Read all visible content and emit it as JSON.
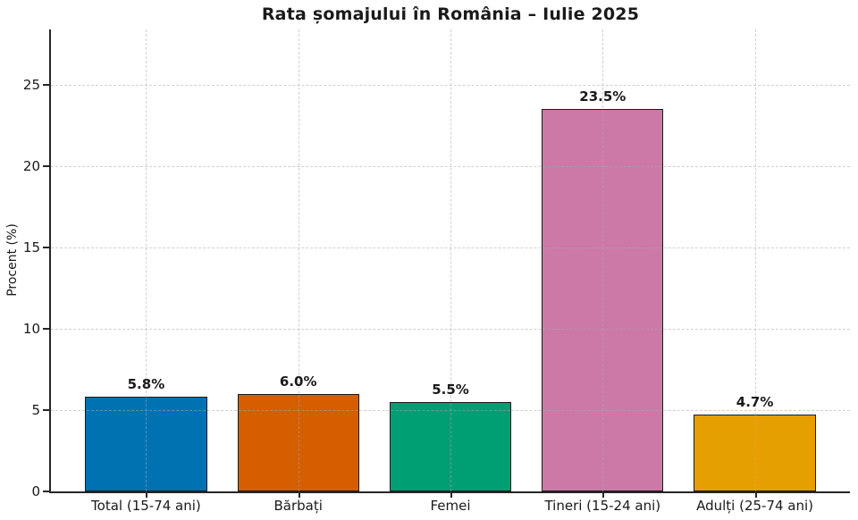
{
  "title": "Rata șomajului în România – Iulie 2025",
  "chart_data": {
    "type": "bar",
    "title": "Rata șomajului în România – Iulie 2025",
    "xlabel": "",
    "ylabel": "Procent (%)",
    "categories": [
      "Total (15-74 ani)",
      "Bărbați",
      "Femei",
      "Tineri (15-24 ani)",
      "Adulți (25-74 ani)"
    ],
    "values": [
      5.8,
      6.0,
      5.5,
      23.5,
      4.7
    ],
    "value_labels": [
      "5.8%",
      "6.0%",
      "5.5%",
      "23.5%",
      "4.7%"
    ],
    "bar_colors": [
      "#0072B2",
      "#D55E00",
      "#009E73",
      "#CC79A7",
      "#E69F00"
    ],
    "bar_edge_color": "#1a1a1a",
    "yticks": [
      0,
      5,
      10,
      15,
      20,
      25
    ],
    "ylim": [
      0,
      28.4
    ],
    "grid": true,
    "grid_style": "dashed",
    "legend": "none"
  }
}
